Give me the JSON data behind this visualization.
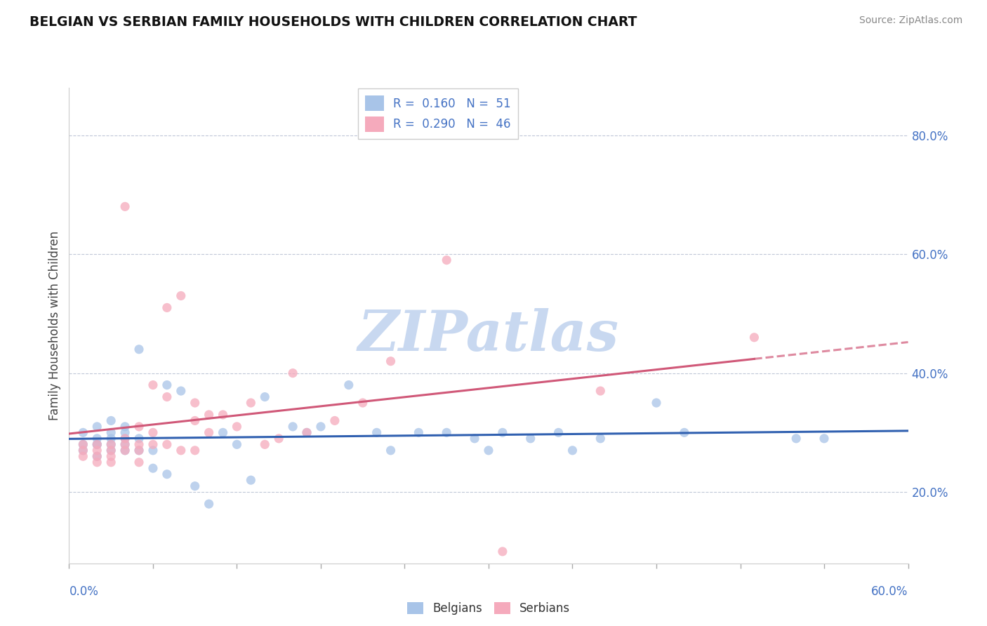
{
  "title": "BELGIAN VS SERBIAN FAMILY HOUSEHOLDS WITH CHILDREN CORRELATION CHART",
  "source": "Source: ZipAtlas.com",
  "ylabel": "Family Households with Children",
  "xlim": [
    0.0,
    0.6
  ],
  "ylim": [
    0.08,
    0.88
  ],
  "yticks": [
    0.2,
    0.4,
    0.6,
    0.8
  ],
  "ytick_labels": [
    "20.0%",
    "40.0%",
    "60.0%",
    "80.0%"
  ],
  "belgian_color": "#a8c4e8",
  "serbian_color": "#f5aabc",
  "belgian_line_color": "#3060b0",
  "serbian_line_color": "#d05878",
  "watermark": "ZIPatlas",
  "watermark_color": "#c8d8f0",
  "legend_label_belgian": "R =  0.160   N =  51",
  "legend_label_serbian": "R =  0.290   N =  46",
  "belgians_x": [
    0.01,
    0.01,
    0.01,
    0.02,
    0.02,
    0.02,
    0.02,
    0.02,
    0.03,
    0.03,
    0.03,
    0.03,
    0.03,
    0.04,
    0.04,
    0.04,
    0.04,
    0.04,
    0.05,
    0.05,
    0.05,
    0.06,
    0.06,
    0.07,
    0.07,
    0.08,
    0.09,
    0.1,
    0.11,
    0.12,
    0.13,
    0.14,
    0.16,
    0.17,
    0.18,
    0.2,
    0.22,
    0.23,
    0.25,
    0.27,
    0.29,
    0.3,
    0.31,
    0.33,
    0.35,
    0.36,
    0.38,
    0.42,
    0.44,
    0.52,
    0.54
  ],
  "belgians_y": [
    0.28,
    0.3,
    0.27,
    0.28,
    0.29,
    0.31,
    0.26,
    0.28,
    0.27,
    0.29,
    0.3,
    0.28,
    0.32,
    0.27,
    0.29,
    0.28,
    0.31,
    0.3,
    0.27,
    0.29,
    0.44,
    0.24,
    0.27,
    0.23,
    0.38,
    0.37,
    0.21,
    0.18,
    0.3,
    0.28,
    0.22,
    0.36,
    0.31,
    0.3,
    0.31,
    0.38,
    0.3,
    0.27,
    0.3,
    0.3,
    0.29,
    0.27,
    0.3,
    0.29,
    0.3,
    0.27,
    0.29,
    0.35,
    0.3,
    0.29,
    0.29
  ],
  "serbians_x": [
    0.01,
    0.01,
    0.01,
    0.02,
    0.02,
    0.02,
    0.02,
    0.03,
    0.03,
    0.03,
    0.03,
    0.04,
    0.04,
    0.04,
    0.04,
    0.05,
    0.05,
    0.05,
    0.05,
    0.06,
    0.06,
    0.06,
    0.07,
    0.07,
    0.07,
    0.08,
    0.08,
    0.09,
    0.09,
    0.09,
    0.1,
    0.1,
    0.11,
    0.12,
    0.13,
    0.14,
    0.15,
    0.16,
    0.17,
    0.19,
    0.21,
    0.23,
    0.27,
    0.31,
    0.38,
    0.49
  ],
  "serbians_y": [
    0.28,
    0.27,
    0.26,
    0.28,
    0.26,
    0.27,
    0.25,
    0.27,
    0.28,
    0.26,
    0.25,
    0.29,
    0.68,
    0.28,
    0.27,
    0.27,
    0.31,
    0.28,
    0.25,
    0.38,
    0.28,
    0.3,
    0.51,
    0.28,
    0.36,
    0.53,
    0.27,
    0.35,
    0.32,
    0.27,
    0.3,
    0.33,
    0.33,
    0.31,
    0.35,
    0.28,
    0.29,
    0.4,
    0.3,
    0.32,
    0.35,
    0.42,
    0.59,
    0.1,
    0.37,
    0.46
  ]
}
